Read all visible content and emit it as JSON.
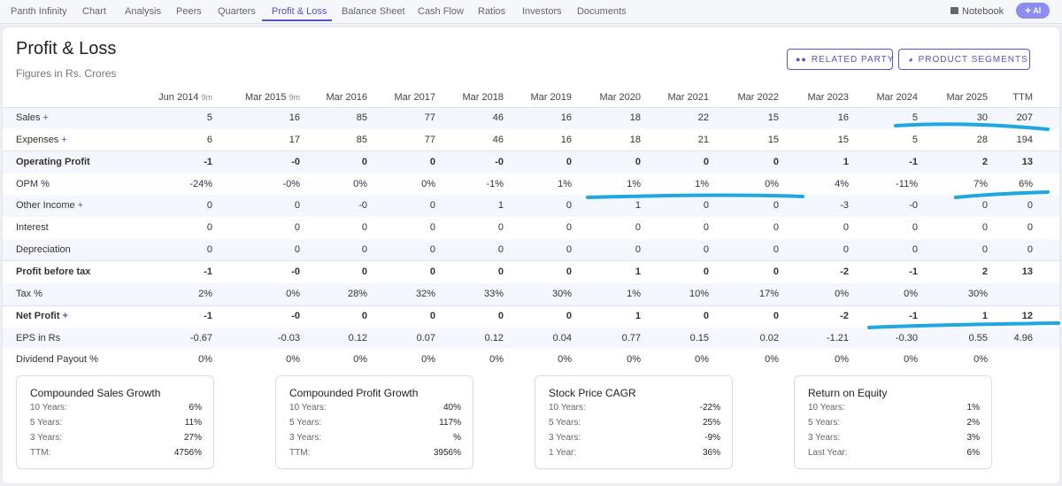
{
  "nav": {
    "tabs": [
      "Panth Infinity",
      "Chart",
      "Analysis",
      "Peers",
      "Quarters",
      "Profit & Loss",
      "Balance Sheet",
      "Cash Flow",
      "Ratios",
      "Investors",
      "Documents"
    ],
    "active_tab": "Profit & Loss",
    "notebook_label": "Notebook",
    "ai_label": "AI"
  },
  "section": {
    "title": "Profit & Loss",
    "subtitle": "Figures in Rs. Crores",
    "related_party_label": "RELATED PARTY",
    "product_segments_label": "PRODUCT SEGMENTS"
  },
  "table": {
    "columns": [
      {
        "label": "Jun 2014",
        "suffix": "9m"
      },
      {
        "label": "Mar 2015",
        "suffix": "9m"
      },
      {
        "label": "Mar 2016",
        "suffix": ""
      },
      {
        "label": "Mar 2017",
        "suffix": ""
      },
      {
        "label": "Mar 2018",
        "suffix": ""
      },
      {
        "label": "Mar 2019",
        "suffix": ""
      },
      {
        "label": "Mar 2020",
        "suffix": ""
      },
      {
        "label": "Mar 2021",
        "suffix": ""
      },
      {
        "label": "Mar 2022",
        "suffix": ""
      },
      {
        "label": "Mar 2023",
        "suffix": ""
      },
      {
        "label": "Mar 2024",
        "suffix": ""
      },
      {
        "label": "Mar 2025",
        "suffix": ""
      },
      {
        "label": "TTM",
        "suffix": ""
      }
    ],
    "rows": [
      {
        "label": "Sales",
        "plus": "+",
        "bold": false,
        "values": [
          "5",
          "16",
          "85",
          "77",
          "46",
          "16",
          "18",
          "22",
          "15",
          "16",
          "5",
          "30",
          "207"
        ]
      },
      {
        "label": "Expenses",
        "plus": "+",
        "bold": false,
        "values": [
          "6",
          "17",
          "85",
          "77",
          "46",
          "16",
          "18",
          "21",
          "15",
          "15",
          "5",
          "28",
          "194"
        ]
      },
      {
        "label": "Operating Profit",
        "plus": "",
        "bold": true,
        "values": [
          "-1",
          "-0",
          "0",
          "0",
          "-0",
          "0",
          "0",
          "0",
          "0",
          "1",
          "-1",
          "2",
          "13"
        ]
      },
      {
        "label": "OPM %",
        "plus": "",
        "bold": false,
        "values": [
          "-24%",
          "-0%",
          "0%",
          "0%",
          "-1%",
          "1%",
          "1%",
          "1%",
          "0%",
          "4%",
          "-11%",
          "7%",
          "6%"
        ]
      },
      {
        "label": "Other Income",
        "plus": "+",
        "bold": false,
        "values": [
          "0",
          "0",
          "-0",
          "0",
          "1",
          "0",
          "1",
          "0",
          "0",
          "-3",
          "-0",
          "0",
          "0"
        ]
      },
      {
        "label": "Interest",
        "plus": "",
        "bold": false,
        "values": [
          "0",
          "0",
          "0",
          "0",
          "0",
          "0",
          "0",
          "0",
          "0",
          "0",
          "0",
          "0",
          "0"
        ]
      },
      {
        "label": "Depreciation",
        "plus": "",
        "bold": false,
        "values": [
          "0",
          "0",
          "0",
          "0",
          "0",
          "0",
          "0",
          "0",
          "0",
          "0",
          "0",
          "0",
          "0"
        ]
      },
      {
        "label": "Profit before tax",
        "plus": "",
        "bold": true,
        "values": [
          "-1",
          "-0",
          "0",
          "0",
          "0",
          "0",
          "1",
          "0",
          "0",
          "-2",
          "-1",
          "2",
          "13"
        ]
      },
      {
        "label": "Tax %",
        "plus": "",
        "bold": false,
        "values": [
          "2%",
          "0%",
          "28%",
          "32%",
          "33%",
          "30%",
          "1%",
          "10%",
          "17%",
          "0%",
          "0%",
          "30%",
          ""
        ]
      },
      {
        "label": "Net Profit",
        "plus": "+",
        "bold": true,
        "values": [
          "-1",
          "-0",
          "0",
          "0",
          "0",
          "0",
          "1",
          "0",
          "0",
          "-2",
          "-1",
          "1",
          "12"
        ]
      },
      {
        "label": "EPS in Rs",
        "plus": "",
        "bold": false,
        "values": [
          "-0.67",
          "-0.03",
          "0.12",
          "0.07",
          "0.12",
          "0.04",
          "0.77",
          "0.15",
          "0.02",
          "-1.21",
          "-0.30",
          "0.55",
          "4.96"
        ]
      },
      {
        "label": "Dividend Payout %",
        "plus": "",
        "bold": false,
        "values": [
          "0%",
          "0%",
          "0%",
          "0%",
          "0%",
          "0%",
          "0%",
          "0%",
          "0%",
          "0%",
          "0%",
          "0%",
          ""
        ]
      }
    ]
  },
  "panels": [
    {
      "title": "Compounded Sales Growth",
      "rows": [
        {
          "label": "10 Years:",
          "value": "6%"
        },
        {
          "label": "5 Years:",
          "value": "11%"
        },
        {
          "label": "3 Years:",
          "value": "27%"
        },
        {
          "label": "TTM:",
          "value": "4756%"
        }
      ]
    },
    {
      "title": "Compounded Profit Growth",
      "rows": [
        {
          "label": "10 Years:",
          "value": "40%"
        },
        {
          "label": "5 Years:",
          "value": "117%"
        },
        {
          "label": "3 Years:",
          "value": "%"
        },
        {
          "label": "TTM:",
          "value": "3956%"
        }
      ]
    },
    {
      "title": "Stock Price CAGR",
      "rows": [
        {
          "label": "10 Years:",
          "value": "-22%"
        },
        {
          "label": "5 Years:",
          "value": "25%"
        },
        {
          "label": "3 Years:",
          "value": "-9%"
        },
        {
          "label": "1 Year:",
          "value": "36%"
        }
      ]
    },
    {
      "title": "Return on Equity",
      "rows": [
        {
          "label": "10 Years:",
          "value": "1%"
        },
        {
          "label": "5 Years:",
          "value": "2%"
        },
        {
          "label": "3 Years:",
          "value": "3%"
        },
        {
          "label": "Last Year:",
          "value": "6%"
        }
      ]
    }
  ],
  "colors": {
    "accent": "#5055c8",
    "annotation": "#1ea7e1",
    "row_shade": "#f5f7fe"
  }
}
